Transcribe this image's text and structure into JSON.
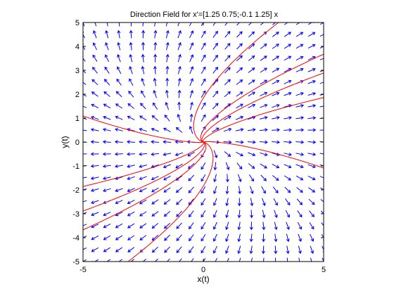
{
  "chart_data": {
    "type": "direction-field",
    "title": "Direction Field for x'=[1.25 0.75;-0.1 1.25] x",
    "xlabel": "x(t)",
    "ylabel": "y(t)",
    "xlim": [
      -5,
      5
    ],
    "ylim": [
      -5,
      5
    ],
    "x_ticks": [
      -5,
      0,
      5
    ],
    "y_ticks": [
      -5,
      -4,
      -3,
      -2,
      -1,
      0,
      1,
      2,
      3,
      4,
      5
    ],
    "grid": false,
    "system_matrix": [
      [
        1.25,
        0.75
      ],
      [
        -0.1,
        1.25
      ]
    ],
    "vector_field": {
      "step": 0.5,
      "color": "#0000ff"
    },
    "trajectories": {
      "color": "#ff0000",
      "start_points": [
        [
          -0.5,
          0
        ],
        [
          0.5,
          0
        ],
        [
          0,
          0.5
        ],
        [
          0,
          -0.5
        ],
        [
          0.35,
          0.35
        ],
        [
          -0.35,
          0.35
        ],
        [
          0.35,
          -0.35
        ],
        [
          -0.35,
          -0.35
        ],
        [
          0.15,
          0.45
        ],
        [
          -0.15,
          -0.45
        ]
      ]
    },
    "axis_color": "#000000"
  }
}
